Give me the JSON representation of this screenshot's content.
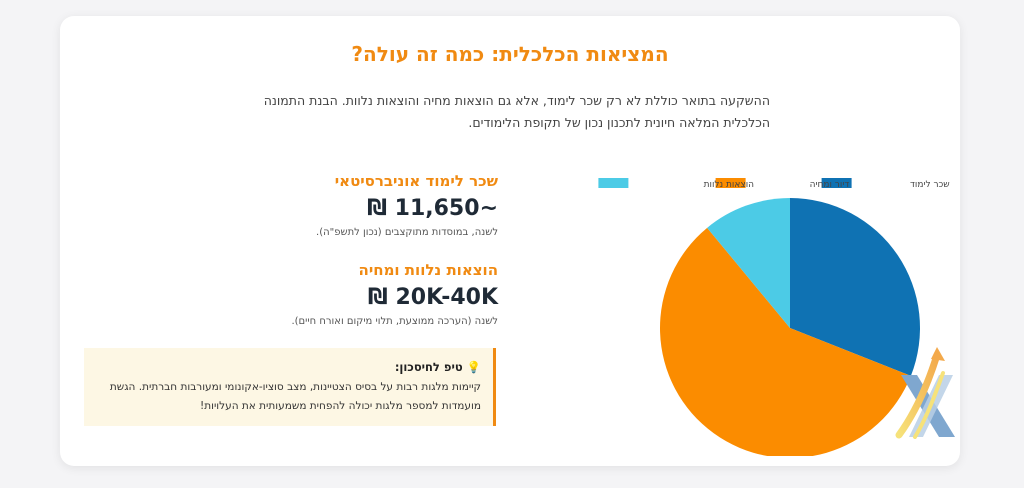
{
  "section": {
    "title": "המציאות הכלכלית: כמה זה עולה?",
    "intro": "ההשקעה בתואר כוללת לא רק שכר לימוד, אלא גם הוצאות מחיה והוצאות נלוות. הבנת התמונה הכלכלית המלאה חיונית לתכנון נכון של תקופת הלימודים."
  },
  "tuition": {
    "heading": "שכר לימוד אוניברסיטאי",
    "value": "~11,650 ₪",
    "note": "לשנה, במוסדות מתוקצבים (נכון לתשפ\"ה)."
  },
  "living": {
    "heading": "הוצאות נלוות ומחיה",
    "value": "20K-40K ₪",
    "note": "לשנה (הערכה ממוצעת, תלוי מיקום ואורח חיים)."
  },
  "tip": {
    "icon": "lightbulb-icon",
    "heading": "טיפ לחיסכון:",
    "body": "קיימות מלגות רבות על בסיס הצטיינות, מצב סוציו-אקונומי ומעורבות חברתית. הגשת מועמדות למספר מלגות יכולה להפחית משמעותית את העלויות!"
  },
  "chart_data": {
    "type": "pie",
    "categories": [
      "שכר לימוד",
      "דיור ומחיה",
      "הוצאות נלוות"
    ],
    "values": [
      31,
      58,
      11
    ],
    "colors": [
      "#0f72b3",
      "#fb8c00",
      "#4ccbe6"
    ],
    "legend_position": "top"
  }
}
